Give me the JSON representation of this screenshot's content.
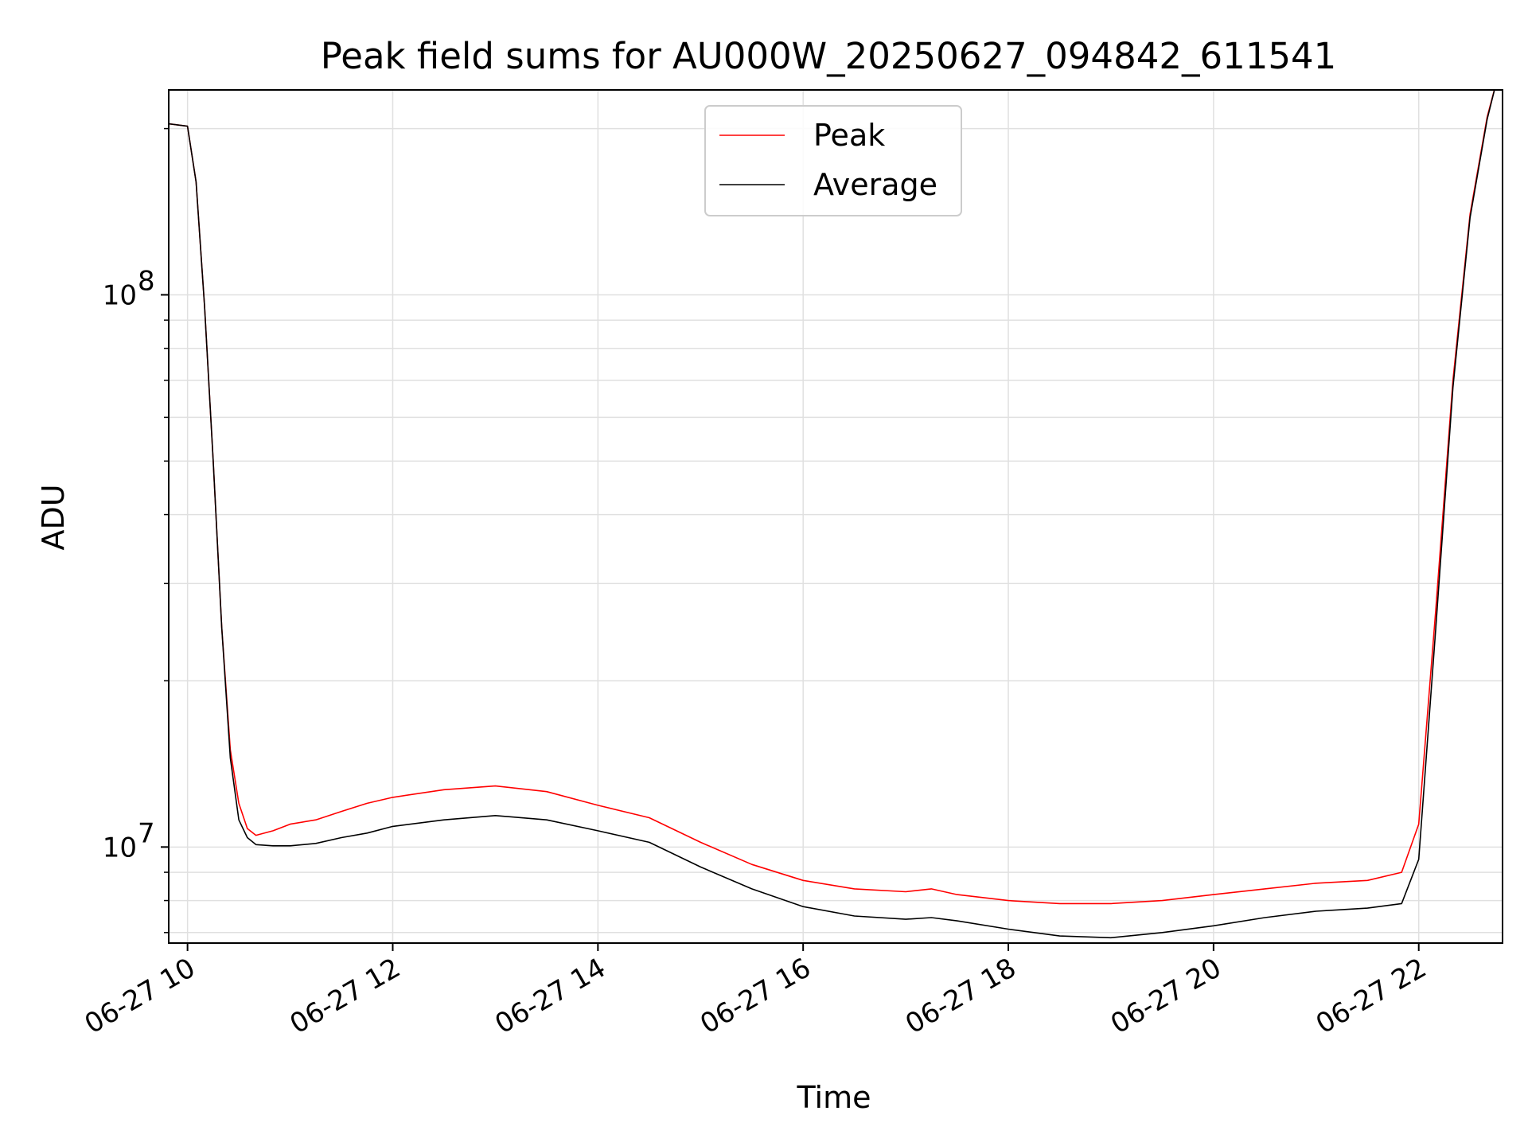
{
  "chart_data": {
    "type": "line",
    "title": "Peak field sums for AU000W_20250627_094842_611541",
    "xlabel": "Time",
    "ylabel": "ADU",
    "y_scale": "log",
    "ylim": [
      6700000,
      235000000
    ],
    "xlim": [
      "06-27 09:49",
      "06-27 22:49"
    ],
    "grid": true,
    "legend_position": "upper center",
    "x_ticks": [
      {
        "value": "06-27 10:00",
        "label": "06-27 10"
      },
      {
        "value": "06-27 12:00",
        "label": "06-27 12"
      },
      {
        "value": "06-27 14:00",
        "label": "06-27 14"
      },
      {
        "value": "06-27 16:00",
        "label": "06-27 16"
      },
      {
        "value": "06-27 18:00",
        "label": "06-27 18"
      },
      {
        "value": "06-27 20:00",
        "label": "06-27 20"
      },
      {
        "value": "06-27 22:00",
        "label": "06-27 22"
      }
    ],
    "y_ticks": [
      {
        "value": 10000000,
        "base": "10",
        "exp": "7"
      },
      {
        "value": 100000000,
        "base": "10",
        "exp": "8"
      }
    ],
    "x": [
      "09:49",
      "10:00",
      "10:05",
      "10:10",
      "10:15",
      "10:20",
      "10:25",
      "10:30",
      "10:35",
      "10:40",
      "10:50",
      "11:00",
      "11:15",
      "11:30",
      "11:45",
      "12:00",
      "12:30",
      "13:00",
      "13:30",
      "14:00",
      "14:30",
      "15:00",
      "15:30",
      "16:00",
      "16:30",
      "17:00",
      "17:15",
      "17:30",
      "18:00",
      "18:30",
      "19:00",
      "19:30",
      "20:00",
      "20:30",
      "21:00",
      "21:30",
      "21:50",
      "22:00",
      "22:10",
      "22:20",
      "22:30",
      "22:40",
      "22:45"
    ],
    "series": [
      {
        "name": "Peak",
        "color": "#ff0000",
        "values": [
          204000000,
          202000000,
          160000000,
          95000000,
          50000000,
          25000000,
          15000000,
          12000000,
          10800000,
          10500000,
          10700000,
          11000000,
          11200000,
          11600000,
          12000000,
          12300000,
          12700000,
          12900000,
          12600000,
          11900000,
          11300000,
          10200000,
          9300000,
          8700000,
          8400000,
          8300000,
          8400000,
          8200000,
          8000000,
          7900000,
          7900000,
          8000000,
          8200000,
          8400000,
          8600000,
          8700000,
          9000000,
          11000000,
          27000000,
          70000000,
          140000000,
          210000000,
          240000000
        ]
      },
      {
        "name": "Average",
        "color": "#000000",
        "values": [
          204000000,
          202000000,
          160000000,
          95000000,
          50000000,
          25000000,
          14500000,
          11200000,
          10400000,
          10100000,
          10050000,
          10050000,
          10150000,
          10400000,
          10600000,
          10900000,
          11200000,
          11400000,
          11200000,
          10700000,
          10200000,
          9200000,
          8400000,
          7800000,
          7500000,
          7400000,
          7450000,
          7350000,
          7100000,
          6900000,
          6850000,
          7000000,
          7200000,
          7450000,
          7650000,
          7750000,
          7900000,
          9500000,
          25000000,
          68000000,
          138000000,
          208000000,
          240000000
        ]
      }
    ]
  }
}
